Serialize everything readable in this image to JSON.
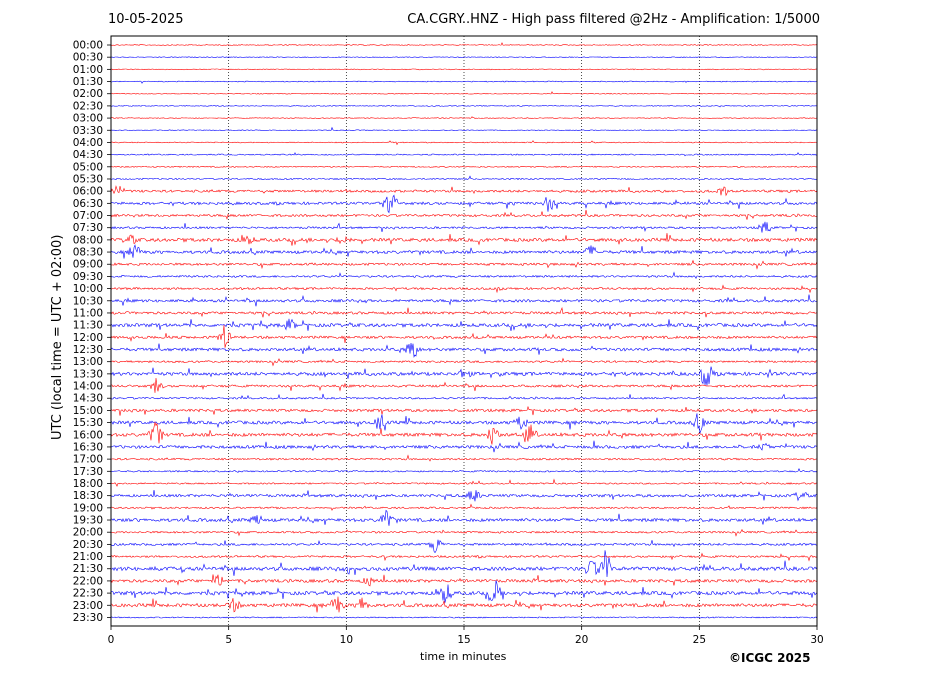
{
  "header": {
    "date": "10-05-2025",
    "station_title": "CA.CGRY..HNZ - High pass filtered @2Hz - Amplification: 1/5000"
  },
  "footer": {
    "copyright": "©ICGC 2025"
  },
  "chart_data": {
    "type": "line",
    "title": "CA.CGRY..HNZ - High pass filtered @2Hz - Amplification: 1/5000",
    "xlabel": "time in minutes",
    "ylabel": "UTC (local time = UTC + 02:00)",
    "xlim": [
      0,
      30
    ],
    "x_ticks": [
      "0",
      "5",
      "10",
      "15",
      "20",
      "25",
      "30"
    ],
    "x_gridlines_dotted": [
      5,
      10,
      15,
      20,
      25
    ],
    "row_labels": [
      "00:00",
      "00:30",
      "01:00",
      "01:30",
      "02:00",
      "02:30",
      "03:00",
      "03:30",
      "04:00",
      "04:30",
      "05:00",
      "05:30",
      "06:00",
      "06:30",
      "07:00",
      "07:30",
      "08:00",
      "08:30",
      "09:00",
      "09:30",
      "10:00",
      "10:30",
      "11:00",
      "11:30",
      "12:00",
      "12:30",
      "13:00",
      "13:30",
      "14:00",
      "14:30",
      "15:00",
      "15:30",
      "16:00",
      "16:30",
      "17:00",
      "17:30",
      "18:00",
      "18:30",
      "19:00",
      "19:30",
      "20:00",
      "20:30",
      "21:00",
      "21:30",
      "22:00",
      "22:30",
      "23:00",
      "23:30"
    ],
    "colors": {
      "even_rows": "#ff0000",
      "odd_rows": "#0000ff"
    },
    "row_activity": [
      0.05,
      0.05,
      0.05,
      0.05,
      0.05,
      0.05,
      0.05,
      0.05,
      0.08,
      0.15,
      0.15,
      0.2,
      0.5,
      0.6,
      0.5,
      0.4,
      0.8,
      0.7,
      0.5,
      0.4,
      0.45,
      0.6,
      0.55,
      0.8,
      0.55,
      0.7,
      0.4,
      0.8,
      0.5,
      0.3,
      0.6,
      0.75,
      0.8,
      0.7,
      0.35,
      0.25,
      0.25,
      0.6,
      0.3,
      0.75,
      0.35,
      0.45,
      0.4,
      0.9,
      0.7,
      0.85,
      0.8,
      0.15
    ],
    "events": [
      {
        "row": 12,
        "x": 0.2,
        "amp": 0.35
      },
      {
        "row": 12,
        "x": 26.0,
        "amp": 0.4
      },
      {
        "row": 13,
        "x": 11.9,
        "amp": 0.9
      },
      {
        "row": 13,
        "x": 18.6,
        "amp": 0.7
      },
      {
        "row": 15,
        "x": 27.8,
        "amp": 0.6
      },
      {
        "row": 16,
        "x": 0.8,
        "amp": 0.4
      },
      {
        "row": 16,
        "x": 5.8,
        "amp": 0.4
      },
      {
        "row": 16,
        "x": 9.9,
        "amp": 0.35
      },
      {
        "row": 17,
        "x": 1.0,
        "amp": 0.6
      },
      {
        "row": 17,
        "x": 20.4,
        "amp": 0.5
      },
      {
        "row": 23,
        "x": 7.6,
        "amp": 0.45
      },
      {
        "row": 24,
        "x": 4.8,
        "amp": 1.0
      },
      {
        "row": 25,
        "x": 12.8,
        "amp": 1.0
      },
      {
        "row": 27,
        "x": 15.0,
        "amp": 0.4
      },
      {
        "row": 27,
        "x": 25.3,
        "amp": 1.2
      },
      {
        "row": 28,
        "x": 1.9,
        "amp": 0.6
      },
      {
        "row": 31,
        "x": 11.5,
        "amp": 0.9
      },
      {
        "row": 31,
        "x": 17.4,
        "amp": 0.6
      },
      {
        "row": 31,
        "x": 25.0,
        "amp": 0.8
      },
      {
        "row": 32,
        "x": 1.9,
        "amp": 1.2
      },
      {
        "row": 32,
        "x": 16.2,
        "amp": 0.9
      },
      {
        "row": 32,
        "x": 17.8,
        "amp": 0.7
      },
      {
        "row": 33,
        "x": 27.8,
        "amp": 0.3
      },
      {
        "row": 37,
        "x": 15.4,
        "amp": 0.6
      },
      {
        "row": 37,
        "x": 29.3,
        "amp": 0.4
      },
      {
        "row": 39,
        "x": 6.2,
        "amp": 0.4
      },
      {
        "row": 39,
        "x": 11.7,
        "amp": 0.8
      },
      {
        "row": 41,
        "x": 13.8,
        "amp": 0.7
      },
      {
        "row": 43,
        "x": 21.0,
        "amp": 1.5
      },
      {
        "row": 43,
        "x": 20.4,
        "amp": 0.8
      },
      {
        "row": 44,
        "x": 4.6,
        "amp": 0.5
      },
      {
        "row": 44,
        "x": 11.0,
        "amp": 0.4
      },
      {
        "row": 45,
        "x": 14.2,
        "amp": 0.9
      },
      {
        "row": 45,
        "x": 16.3,
        "amp": 1.0
      },
      {
        "row": 46,
        "x": 5.2,
        "amp": 0.5
      },
      {
        "row": 46,
        "x": 9.6,
        "amp": 0.8
      },
      {
        "row": 46,
        "x": 10.7,
        "amp": 0.8
      }
    ]
  }
}
